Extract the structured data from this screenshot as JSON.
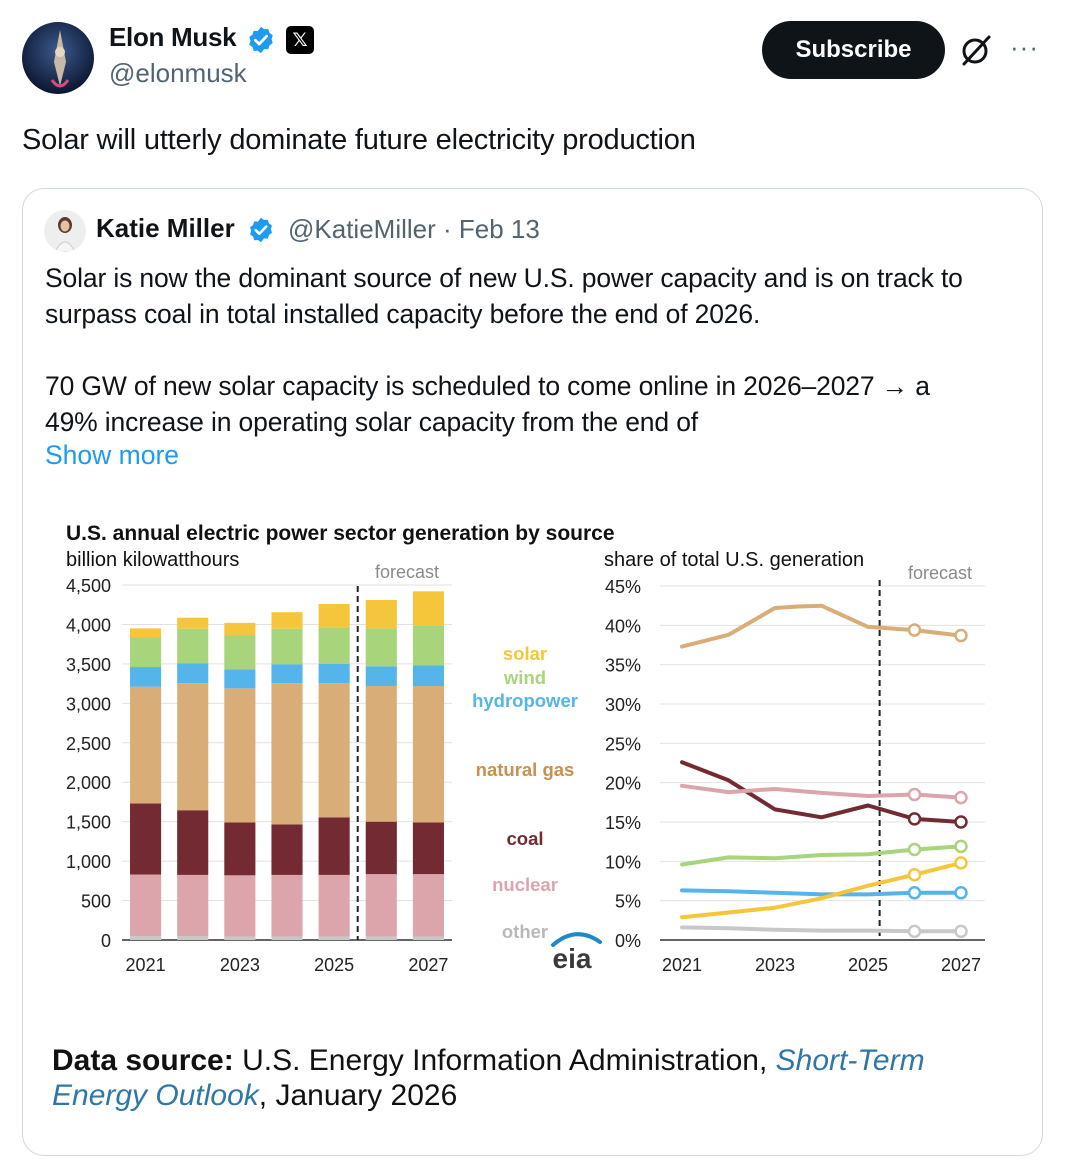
{
  "post": {
    "author_name": "Elon Musk",
    "author_handle": "@elonmusk",
    "x_badge": "𝕏",
    "subscribe_label": "Subscribe",
    "more_label": "···",
    "text": "Solar will utterly dominate future electricity production"
  },
  "quote": {
    "author_name": "Katie Miller",
    "meta": "@KatieMiller · Feb 13",
    "lines": [
      "Solar is now the dominant source of new U.S. power capacity and is on track to",
      "surpass coal in total installed capacity before the end of 2026.",
      "",
      "70 GW of new solar capacity is scheduled to come online in 2026–2027 → a",
      "49% increase in operating solar capacity from the end of"
    ],
    "show_more": "Show more"
  },
  "image": {
    "title": "U.S. annual electric power sector generation by source",
    "unit_left": "billion kilowatthours",
    "unit_right": "share of total U.S. generation",
    "forecast_label": "forecast",
    "logo": "eia",
    "source_label": "Data source:",
    "source_text": " U.S. Energy Information Administration, ",
    "source_link": "Short-Term Energy Outlook",
    "source_tail": ", January 2026"
  },
  "colors": {
    "solar": "#f5c63c",
    "wind": "#a8d47c",
    "hydropower": "#55b4ea",
    "natural_gas": "#d8ad78",
    "coal": "#742a33",
    "nuclear": "#dca5ac",
    "other": "#c8c8c8",
    "link": "#1d9bf0",
    "verified": "#1d9bf0"
  },
  "chart_data": [
    {
      "type": "bar",
      "stacked": true,
      "ylabel": "billion kilowatthours",
      "ylim": [
        0,
        4500
      ],
      "yticks": [
        "0",
        "500",
        "1,000",
        "1,500",
        "2,000",
        "2,500",
        "3,000",
        "3,500",
        "4,000",
        "4,500"
      ],
      "ytick_values": [
        0,
        500,
        1000,
        1500,
        2000,
        2500,
        3000,
        3500,
        4000,
        4500
      ],
      "categories": [
        2021,
        2022,
        2023,
        2024,
        2025,
        2026,
        2027
      ],
      "xticks": [
        "2021",
        "2023",
        "2025",
        "2027"
      ],
      "xtick_values": [
        2021,
        2023,
        2025,
        2027
      ],
      "forecast_start": 2025.5,
      "series": [
        {
          "name": "other",
          "color": "#c8c8c8",
          "values": [
            50,
            50,
            45,
            45,
            45,
            45,
            45
          ]
        },
        {
          "name": "nuclear",
          "color": "#dca5ac",
          "values": [
            780,
            775,
            775,
            780,
            780,
            790,
            790
          ]
        },
        {
          "name": "coal",
          "color": "#742a33",
          "values": [
            900,
            820,
            670,
            640,
            730,
            665,
            655
          ]
        },
        {
          "name": "natural gas",
          "color": "#d8ad78",
          "values": [
            1480,
            1610,
            1700,
            1790,
            1700,
            1720,
            1730
          ]
        },
        {
          "name": "hydropower",
          "color": "#55b4ea",
          "values": [
            250,
            250,
            240,
            240,
            245,
            250,
            260
          ]
        },
        {
          "name": "wind",
          "color": "#a8d47c",
          "values": [
            380,
            440,
            430,
            450,
            460,
            480,
            510
          ]
        },
        {
          "name": "solar",
          "color": "#f5c63c",
          "values": [
            110,
            140,
            160,
            210,
            300,
            360,
            430
          ]
        }
      ]
    },
    {
      "type": "line",
      "ylabel": "share of total U.S. generation",
      "ylim": [
        0,
        45
      ],
      "yticks": [
        "0%",
        "5%",
        "10%",
        "15%",
        "20%",
        "25%",
        "30%",
        "35%",
        "40%",
        "45%"
      ],
      "ytick_values": [
        0,
        5,
        10,
        15,
        20,
        25,
        30,
        35,
        40,
        45
      ],
      "x": [
        2021,
        2022,
        2023,
        2024,
        2025,
        2026,
        2027
      ],
      "xticks": [
        "2021",
        "2023",
        "2025",
        "2027"
      ],
      "xtick_values": [
        2021,
        2023,
        2025,
        2027
      ],
      "forecast_start": 2025.25,
      "forecast_points": [
        2026,
        2027
      ],
      "series": [
        {
          "name": "natural gas",
          "color": "#d8ad78",
          "x": [
            2021,
            2022,
            2023,
            2023.5,
            2024,
            2025,
            2026,
            2027
          ],
          "values": [
            37.3,
            38.8,
            42.2,
            42.4,
            42.5,
            39.8,
            39.4,
            38.7
          ]
        },
        {
          "name": "coal",
          "color": "#742a33",
          "x": [
            2021,
            2022,
            2023,
            2024,
            2025,
            2026,
            2027
          ],
          "values": [
            22.6,
            20.3,
            16.6,
            15.6,
            17.1,
            15.4,
            15.0
          ]
        },
        {
          "name": "nuclear",
          "color": "#dca5ac",
          "x": [
            2021,
            2022,
            2023,
            2024,
            2025,
            2026,
            2027
          ],
          "values": [
            19.6,
            18.8,
            19.2,
            18.7,
            18.3,
            18.5,
            18.1
          ]
        },
        {
          "name": "wind",
          "color": "#a8d47c",
          "x": [
            2021,
            2022,
            2023,
            2024,
            2025,
            2026,
            2027
          ],
          "values": [
            9.6,
            10.5,
            10.4,
            10.8,
            10.9,
            11.5,
            11.9
          ]
        },
        {
          "name": "hydropower",
          "color": "#55b4ea",
          "x": [
            2021,
            2022,
            2023,
            2024,
            2025,
            2026,
            2027
          ],
          "values": [
            6.3,
            6.2,
            6.0,
            5.8,
            5.8,
            6.0,
            6.0
          ]
        },
        {
          "name": "solar",
          "color": "#f5c63c",
          "x": [
            2021,
            2022,
            2023,
            2024,
            2025,
            2026,
            2027
          ],
          "values": [
            2.9,
            3.5,
            4.1,
            5.3,
            6.9,
            8.3,
            9.8
          ]
        },
        {
          "name": "other",
          "color": "#c8c8c8",
          "x": [
            2021,
            2022,
            2023,
            2024,
            2025,
            2026,
            2027
          ],
          "values": [
            1.6,
            1.5,
            1.3,
            1.2,
            1.2,
            1.1,
            1.1
          ]
        }
      ]
    }
  ],
  "legend": [
    {
      "label": "solar",
      "color": "#f5c63c"
    },
    {
      "label": "wind",
      "color": "#a8d47c"
    },
    {
      "label": "hydropower",
      "color": "#55b4ea"
    },
    {
      "label": "natural gas",
      "color": "#c8914f"
    },
    {
      "label": "coal",
      "color": "#742a33"
    },
    {
      "label": "nuclear",
      "color": "#dca5ac"
    },
    {
      "label": "other",
      "color": "#b8b8b8"
    }
  ]
}
